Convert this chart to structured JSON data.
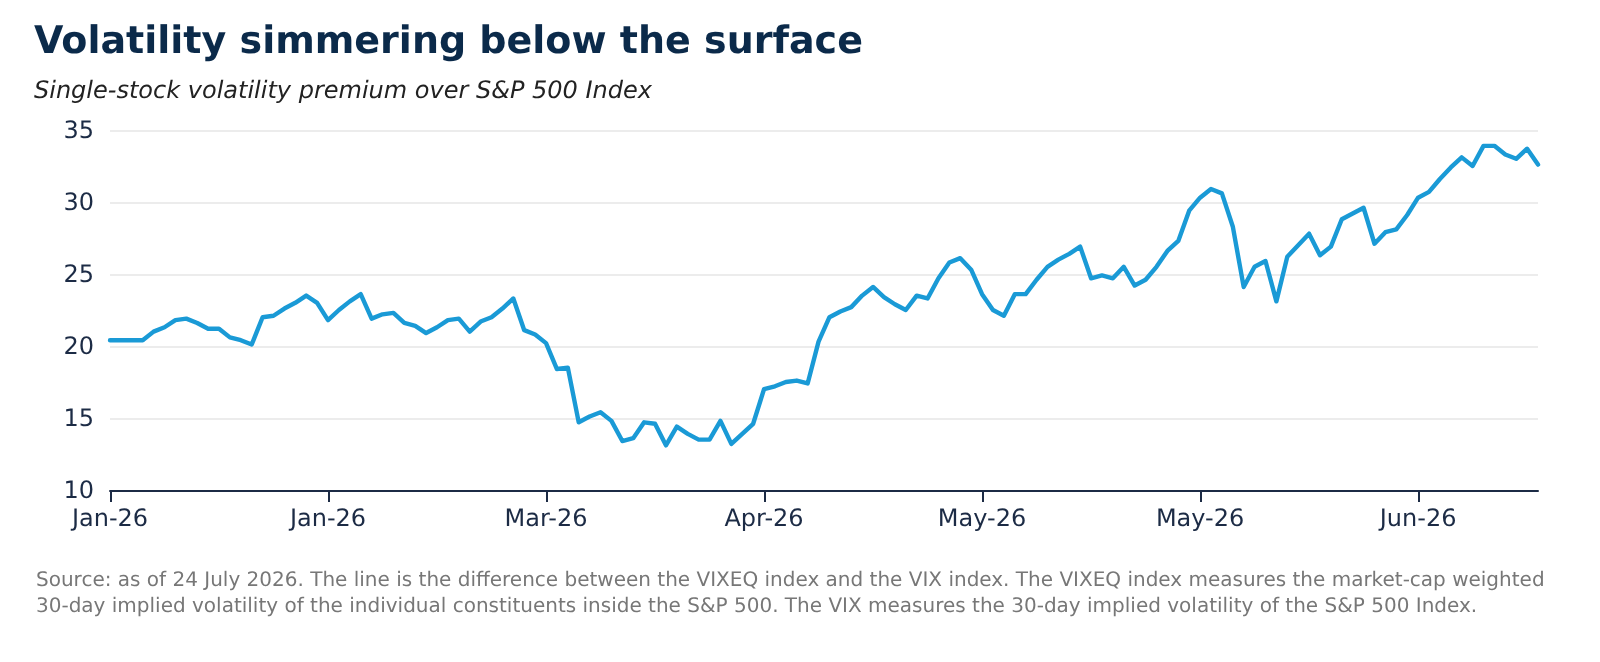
{
  "chart_data": {
    "type": "line",
    "title": "Volatility simmering below the surface",
    "subtitle": "Single-stock volatility premium over S&P 500 Index",
    "annotations": [
      "Source: as of 24 July 2026. The line is the difference between the VIXEQ index and the VIX index. The VIXEQ index measures the market-cap weighted 30-day implied volatility of the individual constituents inside the S&P 500. The VIX measures the 30-day implied volatility of the S&P 500 Index."
    ],
    "categories": [
      "Jan-26",
      null,
      null,
      null,
      null,
      null,
      null,
      null,
      null,
      null,
      null,
      null,
      null,
      null,
      null,
      null,
      null,
      null,
      null,
      null,
      "Jan-26",
      null,
      null,
      null,
      null,
      null,
      null,
      null,
      null,
      null,
      null,
      null,
      null,
      null,
      null,
      null,
      null,
      null,
      null,
      null,
      "Mar-26",
      null,
      null,
      null,
      null,
      null,
      null,
      null,
      null,
      null,
      null,
      null,
      null,
      null,
      null,
      null,
      null,
      null,
      null,
      null,
      "Apr-26",
      null,
      null,
      null,
      null,
      null,
      null,
      null,
      null,
      null,
      null,
      null,
      null,
      null,
      null,
      null,
      null,
      null,
      null,
      null,
      "May-26",
      null,
      null,
      null,
      null,
      null,
      null,
      null,
      null,
      null,
      null,
      null,
      null,
      null,
      null,
      null,
      null,
      null,
      null,
      null,
      "May-26",
      null,
      null,
      null,
      null,
      null,
      null,
      null,
      null,
      null,
      null,
      null,
      null,
      null,
      null,
      null,
      null,
      null,
      null,
      null,
      "Jun-26",
      null,
      null,
      null,
      null,
      null,
      null,
      null,
      null,
      null,
      null,
      null
    ],
    "series": [
      {
        "color": "#1a9ad6",
        "values": [
          20.4,
          20.4,
          20.4,
          20.4,
          21.0,
          21.3,
          21.8,
          21.9,
          21.6,
          21.2,
          21.2,
          20.6,
          20.4,
          20.1,
          22.0,
          22.1,
          22.6,
          23.0,
          23.5,
          23.0,
          21.8,
          22.5,
          23.1,
          23.6,
          21.9,
          22.2,
          22.3,
          21.6,
          21.4,
          20.9,
          21.3,
          21.8,
          21.9,
          21.0,
          21.7,
          22.0,
          22.6,
          23.3,
          21.1,
          20.8,
          20.2,
          18.4,
          18.5,
          14.7,
          15.1,
          15.4,
          14.8,
          13.4,
          13.6,
          14.7,
          14.6,
          13.1,
          14.4,
          13.9,
          13.5,
          13.5,
          14.8,
          13.2,
          13.9,
          14.6,
          17.0,
          17.2,
          17.5,
          17.6,
          17.4,
          20.3,
          22.0,
          22.4,
          22.7,
          23.5,
          24.1,
          23.4,
          22.9,
          22.5,
          23.5,
          23.3,
          24.7,
          25.8,
          26.1,
          25.3,
          23.6,
          22.5,
          22.1,
          23.6,
          23.6,
          24.6,
          25.5,
          26.0,
          26.4,
          26.9,
          24.7,
          24.9,
          24.7,
          25.5,
          24.2,
          24.6,
          25.5,
          26.6,
          27.3,
          29.4,
          30.3,
          30.9,
          30.6,
          28.3,
          24.1,
          25.5,
          25.9,
          23.1,
          26.2,
          27.0,
          27.8,
          26.3,
          26.9,
          28.8,
          29.2,
          29.6,
          27.1,
          27.9,
          28.1,
          29.1,
          30.3,
          30.7,
          31.6,
          32.4,
          33.1,
          32.5,
          33.9,
          33.9,
          33.3,
          33.0,
          33.7,
          32.6
        ]
      }
    ],
    "ylim": [
      10,
      35
    ],
    "yticks": [
      10,
      15,
      20,
      25,
      30,
      35
    ],
    "grid": "y",
    "marker": "none",
    "line_style": "solid"
  }
}
